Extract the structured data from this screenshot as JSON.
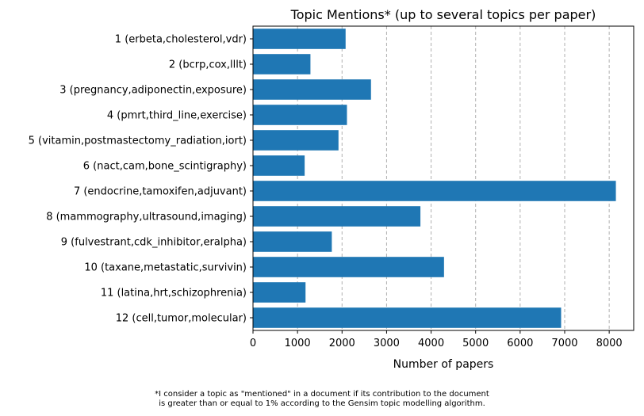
{
  "chart_data": {
    "type": "bar",
    "orientation": "horizontal",
    "title": "Topic Mentions* (up to several topics per paper)",
    "xlabel": "Number of papers",
    "ylabel": "",
    "xlim": [
      0,
      8550
    ],
    "xticks": [
      "0",
      "1000",
      "2000",
      "3000",
      "4000",
      "5000",
      "6000",
      "7000",
      "8000"
    ],
    "xtick_values": [
      0,
      1000,
      2000,
      3000,
      4000,
      5000,
      6000,
      7000,
      8000
    ],
    "grid": "vertical dashed",
    "bar_color": "#1f77b4",
    "grid_color": "#b0b0b0",
    "categories": [
      "1 (erbeta,cholesterol,vdr)",
      "2 (bcrp,cox,lllt)",
      "3 (pregnancy,adiponectin,exposure)",
      "4 (pmrt,third_line,exercise)",
      "5 (vitamin,postmastectomy_radiation,iort)",
      "6 (nact,cam,bone_scintigraphy)",
      "7 (endocrine,tamoxifen,adjuvant)",
      "8 (mammography,ultrasound,imaging)",
      "9 (fulvestrant,cdk_inhibitor,eralpha)",
      "10 (taxane,metastatic,survivin)",
      "11 (latina,hrt,schizophrenia)",
      "12 (cell,tumor,molecular)"
    ],
    "values": [
      2080,
      1290,
      2650,
      2110,
      1920,
      1160,
      8150,
      3760,
      1770,
      4290,
      1180,
      6920
    ]
  },
  "footnote": {
    "line1": "*I consider a topic as \"mentioned\" in a document if its contribution to the document",
    "line2": "is greater than or equal to 1% according to the Gensim topic modelling algorithm."
  }
}
